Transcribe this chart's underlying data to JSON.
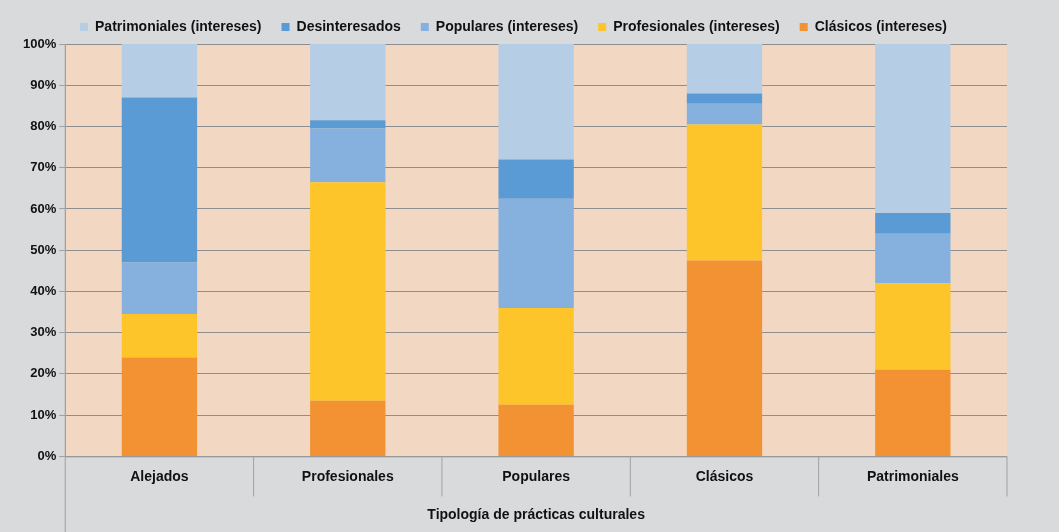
{
  "chart_data": {
    "type": "bar",
    "stacked": true,
    "xlabel": "Tipología de prácticas culturales",
    "categories": [
      "Alejados",
      "Profesionales",
      "Populares",
      "Clásicos",
      "Patrimoniales"
    ],
    "series": [
      {
        "name": "Clásicos (intereses)",
        "color": "#f39233",
        "values": [
          24,
          13.5,
          12.5,
          47.5,
          21
        ]
      },
      {
        "name": "Profesionales (intereses)",
        "color": "#fdc52a",
        "values": [
          10.5,
          53,
          23.5,
          33,
          21
        ]
      },
      {
        "name": "Populares (intereses)",
        "color": "#86b1de",
        "values": [
          12.5,
          13,
          26.5,
          5,
          12
        ]
      },
      {
        "name": "Desinteresados",
        "color": "#5b9bd5",
        "values": [
          40,
          2,
          9.5,
          2.5,
          5
        ]
      },
      {
        "name": "Patrimoniales (intereses)",
        "color": "#b5cde5",
        "values": [
          13,
          18.5,
          28,
          12,
          41
        ]
      }
    ],
    "ylim": [
      0,
      100
    ],
    "yticks": [
      {
        "value": 0,
        "label": "0%"
      },
      {
        "value": 10,
        "label": "10%"
      },
      {
        "value": 20,
        "label": "20%"
      },
      {
        "value": 30,
        "label": "30%"
      },
      {
        "value": 40,
        "label": "40%"
      },
      {
        "value": 50,
        "label": "50%"
      },
      {
        "value": 60,
        "label": "60%"
      },
      {
        "value": 70,
        "label": "70%"
      },
      {
        "value": 80,
        "label": "80%"
      },
      {
        "value": 90,
        "label": "90%"
      },
      {
        "value": 100,
        "label": "100%"
      }
    ],
    "grid": "y",
    "legend": "top"
  }
}
